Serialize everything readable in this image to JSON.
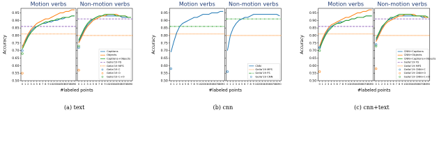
{
  "chart_data": [
    {
      "type": "line",
      "caption": "(a) text",
      "ylabel": "Accuracy",
      "xlabel": "#labeled points",
      "categories": [
        "0",
        "1",
        "2",
        "3",
        "4",
        "5",
        "6",
        "7",
        "8",
        "9",
        "10",
        "20",
        "30",
        "40",
        "50",
        "60",
        "70",
        "80",
        "90"
      ],
      "ylim": [
        0.5,
        0.98
      ],
      "yticks": [
        {
          "value": 0.5,
          "label": "0.50"
        },
        0.55,
        {
          "value": 0.6,
          "label": "0.60"
        },
        0.65,
        {
          "value": 0.7,
          "label": "0.70"
        },
        0.75,
        {
          "value": 0.8,
          "label": "0.80"
        },
        0.85,
        {
          "value": 0.9,
          "label": "0.90"
        },
        0.95
      ],
      "panels": [
        {
          "title": "Motion verbs",
          "series": [
            {
              "name": "Captions",
              "color": "#1f77b4",
              "values": [
                0.73,
                0.76,
                0.8,
                0.83,
                0.85,
                0.86,
                0.87,
                0.88,
                0.88,
                0.89,
                0.89,
                0.9,
                0.9,
                0.91,
                0.91,
                0.92,
                0.92,
                0.93,
                0.93
              ]
            },
            {
              "name": "Objects",
              "color": "#ff7f0e",
              "values": [
                0.72,
                0.77,
                0.81,
                0.84,
                0.86,
                0.88,
                0.89,
                0.9,
                0.91,
                0.91,
                0.92,
                0.93,
                0.94,
                0.95,
                0.95,
                0.96,
                0.96,
                0.97,
                0.97
              ]
            },
            {
              "name": "Captions+Objects",
              "color": "#2ca02c",
              "values": [
                0.71,
                0.75,
                0.79,
                0.82,
                0.84,
                0.86,
                0.87,
                0.88,
                0.89,
                0.89,
                0.9,
                0.9,
                0.91,
                0.91,
                0.92,
                0.92,
                0.92,
                0.93,
                0.93
              ]
            }
          ],
          "reference_lines": [
            {
              "name": "Gella'19 FS",
              "color": "#9467bd",
              "dash": "3 1.5",
              "value": 0.86
            },
            {
              "name": "Gella'19 MFS",
              "color": "#ff7f0e",
              "dash": "1 1",
              "value": 0.81
            }
          ],
          "points": [
            {
              "name": "Gella'19 C",
              "color": "#1f77b4",
              "value": 0.7
            },
            {
              "name": "Gella'19 O",
              "color": "#ff7f0e",
              "value": 0.55
            },
            {
              "name": "Gella'19 C+O",
              "color": "#2ca02c",
              "value": 0.68
            }
          ]
        },
        {
          "title": "Non-motion verbs",
          "series": [
            {
              "name": "Captions",
              "color": "#1f77b4",
              "values": [
                0.76,
                0.8,
                0.84,
                0.87,
                0.89,
                0.91,
                0.92,
                0.93,
                0.93,
                0.93,
                0.93,
                0.93,
                0.93,
                0.93,
                0.93,
                0.92,
                0.92,
                0.92,
                0.92
              ]
            },
            {
              "name": "Objects",
              "color": "#ff7f0e",
              "values": [
                0.75,
                0.79,
                0.83,
                0.86,
                0.88,
                0.9,
                0.91,
                0.92,
                0.93,
                0.93,
                0.94,
                0.94,
                0.94,
                0.94,
                0.93,
                0.93,
                0.93,
                0.92,
                0.92
              ]
            },
            {
              "name": "Captions+Objects",
              "color": "#2ca02c",
              "values": [
                0.77,
                0.81,
                0.85,
                0.88,
                0.9,
                0.91,
                0.92,
                0.93,
                0.93,
                0.94,
                0.94,
                0.94,
                0.94,
                0.93,
                0.93,
                0.93,
                0.93,
                0.92,
                0.92
              ]
            }
          ],
          "reference_lines": [
            {
              "name": "Gella'19 FS",
              "color": "#9467bd",
              "dash": "3 1.5",
              "value": 0.91
            },
            {
              "name": "Gella'19 MFS",
              "color": "#ff7f0e",
              "dash": "1 1",
              "value": 0.8
            }
          ],
          "points": [
            {
              "name": "Gella'19 C",
              "color": "#1f77b4",
              "value": 0.72
            },
            {
              "name": "Gella'19 O",
              "color": "#ff7f0e",
              "value": 0.57
            },
            {
              "name": "Gella'19 C+O",
              "color": "#2ca02c",
              "value": 0.73
            }
          ]
        }
      ]
    },
    {
      "type": "line",
      "caption": "(b) cnn",
      "ylabel": "Accuracy",
      "xlabel": "#labeled points",
      "categories": [
        "0",
        "1",
        "2",
        "3",
        "4",
        "5",
        "6",
        "7",
        "8",
        "9",
        "10",
        "20",
        "30",
        "40",
        "50",
        "60",
        "70",
        "80",
        "90"
      ],
      "ylim": [
        0.5,
        0.98
      ],
      "yticks": [
        {
          "value": 0.5,
          "label": "0.50"
        },
        0.55,
        {
          "value": 0.6,
          "label": "0.60"
        },
        0.65,
        {
          "value": 0.7,
          "label": "0.70"
        },
        0.75,
        {
          "value": 0.8,
          "label": "0.80"
        },
        0.85,
        {
          "value": 0.9,
          "label": "0.90"
        },
        0.95
      ],
      "panels": [
        {
          "title": "Motion verbs",
          "series": [
            {
              "name": "CNN",
              "color": "#1f77b4",
              "values": [
                0.69,
                0.76,
                0.82,
                0.86,
                0.88,
                0.89,
                0.9,
                0.91,
                0.92,
                0.92,
                0.93,
                0.94,
                0.94,
                0.94,
                0.95,
                0.95,
                0.95,
                0.96,
                0.96
              ]
            }
          ],
          "reference_lines": [
            {
              "name": "Gella'19 MFS",
              "color": "#ff7f0e",
              "dash": "1 1",
              "value": 0.81
            },
            {
              "name": "Gella'19 FS",
              "color": "#2ca02c",
              "dash": "3 1 1 1",
              "value": 0.86
            }
          ],
          "points": [
            {
              "name": "Gella'19 CNN",
              "color": "#1f77b4",
              "value": 0.58
            }
          ]
        },
        {
          "title": "Non-motion verbs",
          "series": [
            {
              "name": "CNN",
              "color": "#1f77b4",
              "values": [
                0.7,
                0.8,
                0.85,
                0.88,
                0.9,
                0.91,
                0.92,
                0.92,
                0.93,
                0.94,
                0.94,
                0.94,
                0.94,
                0.94,
                0.94,
                0.94,
                0.94,
                0.94,
                0.93
              ]
            }
          ],
          "reference_lines": [
            {
              "name": "Gella'19 MFS",
              "color": "#ff7f0e",
              "dash": "1 1",
              "value": 0.8
            },
            {
              "name": "Gella'19 FS",
              "color": "#2ca02c",
              "dash": "3 1 1 1",
              "value": 0.91
            }
          ],
          "points": [
            {
              "name": "Gella'19 CNN",
              "color": "#1f77b4",
              "value": 0.56
            }
          ]
        }
      ]
    },
    {
      "type": "line",
      "caption": "(c) cnn+text",
      "ylabel": "Accuracy",
      "xlabel": "#labeled points",
      "categories": [
        "0",
        "1",
        "2",
        "3",
        "4",
        "5",
        "6",
        "7",
        "8",
        "9",
        "10",
        "20",
        "30",
        "40",
        "50",
        "60",
        "70",
        "80",
        "90"
      ],
      "ylim": [
        0.5,
        0.98
      ],
      "yticks": [
        {
          "value": 0.5,
          "label": "0.50"
        },
        0.55,
        {
          "value": 0.6,
          "label": "0.60"
        },
        0.65,
        {
          "value": 0.7,
          "label": "0.70"
        },
        0.75,
        {
          "value": 0.8,
          "label": "0.80"
        },
        0.85,
        {
          "value": 0.9,
          "label": "0.90"
        },
        0.95
      ],
      "panels": [
        {
          "title": "Motion verbs",
          "series": [
            {
              "name": "CNN+Captions",
              "color": "#1f77b4",
              "values": [
                0.72,
                0.77,
                0.81,
                0.84,
                0.86,
                0.87,
                0.88,
                0.89,
                0.89,
                0.9,
                0.9,
                0.91,
                0.91,
                0.92,
                0.92,
                0.92,
                0.93,
                0.93,
                0.93
              ]
            },
            {
              "name": "CNN+Objects",
              "color": "#ff7f0e",
              "values": [
                0.73,
                0.78,
                0.82,
                0.85,
                0.87,
                0.88,
                0.89,
                0.9,
                0.91,
                0.92,
                0.92,
                0.93,
                0.94,
                0.95,
                0.95,
                0.96,
                0.96,
                0.97,
                0.97
              ]
            },
            {
              "name": "CNN+Captions+Objects",
              "color": "#2ca02c",
              "values": [
                0.71,
                0.76,
                0.8,
                0.83,
                0.85,
                0.87,
                0.88,
                0.88,
                0.89,
                0.9,
                0.9,
                0.91,
                0.91,
                0.92,
                0.92,
                0.92,
                0.93,
                0.93,
                0.93
              ]
            }
          ],
          "reference_lines": [
            {
              "name": "Gella'19 FS",
              "color": "#9467bd",
              "dash": "3 1.5",
              "value": 0.86
            },
            {
              "name": "Gella'19 MFS",
              "color": "#ff7f0e",
              "dash": "1 1",
              "value": 0.81
            }
          ],
          "points": [
            {
              "name": "Gella'19 CNN+C",
              "color": "#1f77b4",
              "value": 0.72
            },
            {
              "name": "Gella'19 CNN+O",
              "color": "#ff7f0e",
              "value": 0.56
            },
            {
              "name": "Gella'19 CNN+C+O",
              "color": "#2ca02c",
              "value": 0.7
            }
          ]
        },
        {
          "title": "Non-motion verbs",
          "series": [
            {
              "name": "CNN+Captions",
              "color": "#1f77b4",
              "values": [
                0.77,
                0.81,
                0.85,
                0.88,
                0.9,
                0.91,
                0.92,
                0.93,
                0.93,
                0.93,
                0.93,
                0.93,
                0.93,
                0.93,
                0.93,
                0.93,
                0.92,
                0.92,
                0.92
              ]
            },
            {
              "name": "CNN+Objects",
              "color": "#ff7f0e",
              "values": [
                0.76,
                0.8,
                0.84,
                0.87,
                0.89,
                0.9,
                0.91,
                0.92,
                0.93,
                0.93,
                0.94,
                0.94,
                0.94,
                0.94,
                0.93,
                0.93,
                0.93,
                0.92,
                0.92
              ]
            },
            {
              "name": "CNN+Captions+Objects",
              "color": "#2ca02c",
              "values": [
                0.78,
                0.82,
                0.86,
                0.88,
                0.9,
                0.92,
                0.92,
                0.93,
                0.94,
                0.94,
                0.94,
                0.94,
                0.94,
                0.93,
                0.93,
                0.93,
                0.93,
                0.93,
                0.92
              ]
            }
          ],
          "reference_lines": [
            {
              "name": "Gella'19 FS",
              "color": "#9467bd",
              "dash": "3 1.5",
              "value": 0.91
            },
            {
              "name": "Gella'19 MFS",
              "color": "#ff7f0e",
              "dash": "1 1",
              "value": 0.8
            }
          ],
          "points": [
            {
              "name": "Gella'19 CNN+C",
              "color": "#1f77b4",
              "value": 0.74
            },
            {
              "name": "Gella'19 CNN+O",
              "color": "#ff7f0e",
              "value": 0.58
            },
            {
              "name": "Gella'19 CNN+C+O",
              "color": "#2ca02c",
              "value": 0.73
            }
          ]
        }
      ]
    }
  ]
}
